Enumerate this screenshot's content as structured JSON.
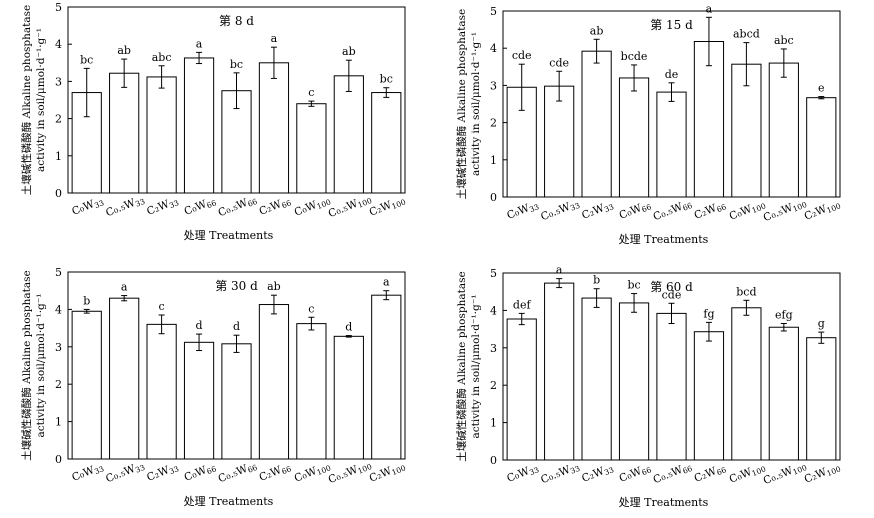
{
  "chart_data": [
    {
      "type": "bar",
      "title": "第 8 d",
      "xlabel": "处理 Treatments",
      "ylabel": [
        "土壤碱性磷酸酶 Alkaline phosphatase",
        "activity in soil/μmol·d⁻¹·g⁻¹"
      ],
      "ylim": [
        0,
        5
      ],
      "yticks": [
        "0",
        "1",
        "2",
        "3",
        "4",
        "5"
      ],
      "categories": [
        {
          "main": "C₀W",
          "sub": "33"
        },
        {
          "main": "C₀.₅W",
          "sub": "33"
        },
        {
          "main": "C₂W",
          "sub": "33"
        },
        {
          "main": "C₀W",
          "sub": "66"
        },
        {
          "main": "C₀.₅W",
          "sub": "66"
        },
        {
          "main": "C₂W",
          "sub": "66"
        },
        {
          "main": "C₀W",
          "sub": "100"
        },
        {
          "main": "C₀.₅W",
          "sub": "100"
        },
        {
          "main": "C₂W",
          "sub": "100"
        }
      ],
      "values": [
        2.7,
        3.22,
        3.12,
        3.63,
        2.75,
        3.5,
        2.4,
        3.15,
        2.7
      ],
      "errors": [
        0.65,
        0.38,
        0.3,
        0.15,
        0.48,
        0.42,
        0.07,
        0.42,
        0.13
      ],
      "letters": [
        "bc",
        "ab",
        "abc",
        "a",
        "bc",
        "a",
        "c",
        "ab",
        "bc"
      ]
    },
    {
      "type": "bar",
      "title": "第 15 d",
      "xlabel": "处理 Treatments",
      "ylabel": [
        "土壤碱性磷酸酶 Alkaline phosphatase",
        "activity in soil/μmol·d⁻¹·g⁻¹"
      ],
      "ylim": [
        0,
        5
      ],
      "yticks": [
        "0",
        "1",
        "2",
        "3",
        "4",
        "5"
      ],
      "categories": [
        {
          "main": "C₀W",
          "sub": "33"
        },
        {
          "main": "C₀.₅W",
          "sub": "33"
        },
        {
          "main": "C₂W",
          "sub": "33"
        },
        {
          "main": "C₀W",
          "sub": "66"
        },
        {
          "main": "C₀.₅W",
          "sub": "66"
        },
        {
          "main": "C₂W",
          "sub": "66"
        },
        {
          "main": "C₀W",
          "sub": "100"
        },
        {
          "main": "C₀.₅W",
          "sub": "100"
        },
        {
          "main": "C₂W",
          "sub": "100"
        }
      ],
      "values": [
        2.95,
        2.98,
        3.92,
        3.2,
        2.82,
        4.18,
        3.57,
        3.6,
        2.67
      ],
      "errors": [
        0.62,
        0.4,
        0.32,
        0.35,
        0.25,
        0.65,
        0.58,
        0.38,
        0.03
      ],
      "letters": [
        "cde",
        "cde",
        "ab",
        "bcde",
        "de",
        "a",
        "abcd",
        "abc",
        "e"
      ]
    },
    {
      "type": "bar",
      "title": "第 30 d",
      "xlabel": "处理 Treatments",
      "ylabel": [
        "土壤碱性磷酸酶 Alkaline phosphatase",
        "activity in soil/μmol·d⁻¹·g⁻¹"
      ],
      "ylim": [
        0,
        5
      ],
      "yticks": [
        "0",
        "1",
        "2",
        "3",
        "4",
        "5"
      ],
      "categories": [
        {
          "main": "C₀W",
          "sub": "33"
        },
        {
          "main": "C₀.₅W",
          "sub": "33"
        },
        {
          "main": "C₂W",
          "sub": "33"
        },
        {
          "main": "C₀W",
          "sub": "66"
        },
        {
          "main": "C₀.₅W",
          "sub": "66"
        },
        {
          "main": "C₂W",
          "sub": "66"
        },
        {
          "main": "C₀W",
          "sub": "100"
        },
        {
          "main": "C₀.₅W",
          "sub": "100"
        },
        {
          "main": "C₂W",
          "sub": "100"
        }
      ],
      "values": [
        3.95,
        4.3,
        3.6,
        3.12,
        3.08,
        4.13,
        3.62,
        3.28,
        4.38
      ],
      "errors": [
        0.05,
        0.07,
        0.25,
        0.22,
        0.23,
        0.25,
        0.17,
        0.02,
        0.12
      ],
      "letters": [
        "b",
        "a",
        "c",
        "d",
        "d",
        "ab",
        "c",
        "d",
        "a"
      ]
    },
    {
      "type": "bar",
      "title": "第 60 d",
      "xlabel": "处理 Treatments",
      "ylabel": [
        "土壤碱性磷酸酶 Alkaline phosphatase",
        "activity in soil/μmol·d⁻¹·g⁻¹"
      ],
      "ylim": [
        0,
        5
      ],
      "yticks": [
        "0",
        "1",
        "2",
        "3",
        "4",
        "5"
      ],
      "categories": [
        {
          "main": "C₀W",
          "sub": "33"
        },
        {
          "main": "C₀.₅W",
          "sub": "33"
        },
        {
          "main": "C₂W",
          "sub": "33"
        },
        {
          "main": "C₀W",
          "sub": "66"
        },
        {
          "main": "C₀.₅W",
          "sub": "66"
        },
        {
          "main": "C₂W",
          "sub": "66"
        },
        {
          "main": "C₀W",
          "sub": "100"
        },
        {
          "main": "C₀.₅W",
          "sub": "100"
        },
        {
          "main": "C₂W",
          "sub": "100"
        }
      ],
      "values": [
        3.77,
        4.73,
        4.33,
        4.2,
        3.92,
        3.43,
        4.07,
        3.55,
        3.27
      ],
      "errors": [
        0.15,
        0.12,
        0.25,
        0.25,
        0.27,
        0.25,
        0.2,
        0.1,
        0.15
      ],
      "letters": [
        "def",
        "a",
        "b",
        "bc",
        "cde",
        "fg",
        "bcd",
        "efg",
        "g"
      ]
    }
  ]
}
